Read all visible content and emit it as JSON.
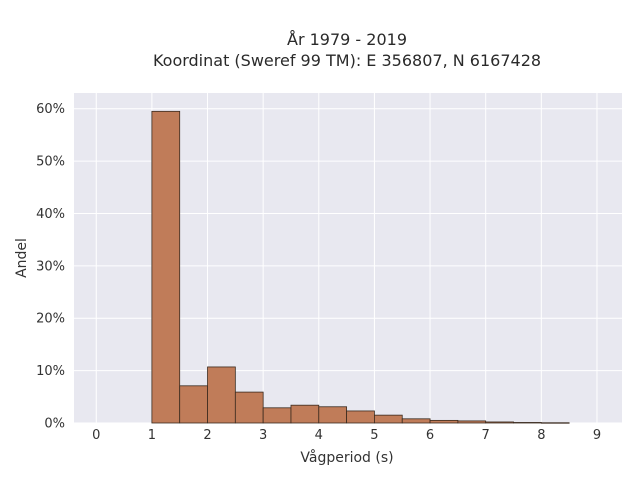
{
  "chart_data": {
    "type": "bar",
    "title_lines": [
      "År 1979 - 2019",
      "Koordinat (Sweref 99 TM): E 356807, N 6167428"
    ],
    "xlabel": "Vågperiod (s)",
    "ylabel": "Andel",
    "xlim": [
      -0.4,
      9.45
    ],
    "ylim": [
      0,
      0.63
    ],
    "x_ticks": [
      0,
      1,
      2,
      3,
      4,
      5,
      6,
      7,
      8,
      9
    ],
    "y_ticks": [
      0,
      0.1,
      0.2,
      0.3,
      0.4,
      0.5,
      0.6
    ],
    "y_tick_labels": [
      "0%",
      "10%",
      "20%",
      "30%",
      "40%",
      "50%",
      "60%"
    ],
    "bin_width": 0.5,
    "bins": [
      {
        "start": 1.0,
        "value": 0.595
      },
      {
        "start": 1.5,
        "value": 0.071
      },
      {
        "start": 2.0,
        "value": 0.107
      },
      {
        "start": 2.5,
        "value": 0.059
      },
      {
        "start": 3.0,
        "value": 0.029
      },
      {
        "start": 3.5,
        "value": 0.034
      },
      {
        "start": 4.0,
        "value": 0.031
      },
      {
        "start": 4.5,
        "value": 0.023
      },
      {
        "start": 5.0,
        "value": 0.015
      },
      {
        "start": 5.5,
        "value": 0.008
      },
      {
        "start": 6.0,
        "value": 0.005
      },
      {
        "start": 6.5,
        "value": 0.004
      },
      {
        "start": 7.0,
        "value": 0.002
      },
      {
        "start": 7.5,
        "value": 0.001
      },
      {
        "start": 8.0,
        "value": 0.0005
      }
    ],
    "grid": true,
    "colors": {
      "bar_fill": "#c07c59",
      "bar_stroke": "#3a2a1e",
      "plot_bg": "#e8e8f0",
      "grid": "#ffffff"
    }
  }
}
